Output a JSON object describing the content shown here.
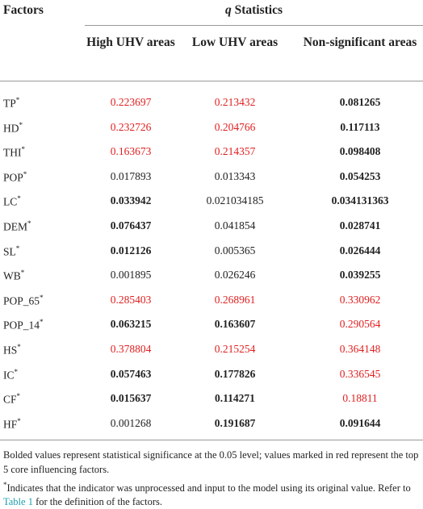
{
  "table": {
    "header": {
      "factors": "Factors",
      "group_italic": "q",
      "group_rest": " Statistics",
      "columns": [
        "High UHV areas",
        "Low UHV areas",
        "Non-significant areas"
      ]
    },
    "rows": [
      {
        "name": "TP",
        "note": "*",
        "cells": [
          {
            "text": "0.223697",
            "color": "#e02020",
            "bold": false
          },
          {
            "text": "0.213432",
            "color": "#e02020",
            "bold": false
          },
          {
            "text": "0.081265",
            "color": "#222222",
            "bold": true
          }
        ]
      },
      {
        "name": "HD",
        "note": "*",
        "cells": [
          {
            "text": "0.232726",
            "color": "#e02020",
            "bold": false
          },
          {
            "text": "0.204766",
            "color": "#e02020",
            "bold": false
          },
          {
            "text": "0.117113",
            "color": "#222222",
            "bold": true
          }
        ]
      },
      {
        "name": "THI",
        "note": "*",
        "cells": [
          {
            "text": "0.163673",
            "color": "#e02020",
            "bold": false
          },
          {
            "text": "0.214357",
            "color": "#e02020",
            "bold": false
          },
          {
            "text": "0.098408",
            "color": "#222222",
            "bold": true
          }
        ]
      },
      {
        "name": "POP",
        "note": "*",
        "cells": [
          {
            "text": "0.017893",
            "color": "#222222",
            "bold": false
          },
          {
            "text": "0.013343",
            "color": "#222222",
            "bold": false
          },
          {
            "text": "0.054253",
            "color": "#222222",
            "bold": true
          }
        ]
      },
      {
        "name": "LC",
        "note": "*",
        "cells": [
          {
            "text": "0.033942",
            "color": "#222222",
            "bold": true
          },
          {
            "text": "0.021034185",
            "color": "#222222",
            "bold": false
          },
          {
            "text": "0.034131363",
            "color": "#222222",
            "bold": true
          }
        ]
      },
      {
        "name": "DEM",
        "note": "*",
        "cells": [
          {
            "text": "0.076437",
            "color": "#222222",
            "bold": true
          },
          {
            "text": "0.041854",
            "color": "#222222",
            "bold": false
          },
          {
            "text": "0.028741",
            "color": "#222222",
            "bold": true
          }
        ]
      },
      {
        "name": "SL",
        "note": "*",
        "cells": [
          {
            "text": "0.012126",
            "color": "#222222",
            "bold": true
          },
          {
            "text": "0.005365",
            "color": "#222222",
            "bold": false
          },
          {
            "text": "0.026444",
            "color": "#222222",
            "bold": true
          }
        ]
      },
      {
        "name": "WB",
        "note": "*",
        "cells": [
          {
            "text": "0.001895",
            "color": "#222222",
            "bold": false
          },
          {
            "text": "0.026246",
            "color": "#222222",
            "bold": false
          },
          {
            "text": "0.039255",
            "color": "#222222",
            "bold": true
          }
        ]
      },
      {
        "name": "POP_65",
        "note": "*",
        "cells": [
          {
            "text": "0.285403",
            "color": "#e02020",
            "bold": false
          },
          {
            "text": "0.268961",
            "color": "#e02020",
            "bold": false
          },
          {
            "text": "0.330962",
            "color": "#e02020",
            "bold": false
          }
        ]
      },
      {
        "name": "POP_14",
        "note": "*",
        "cells": [
          {
            "text": "0.063215",
            "color": "#222222",
            "bold": true
          },
          {
            "text": "0.163607",
            "color": "#222222",
            "bold": true
          },
          {
            "text": "0.290564",
            "color": "#e02020",
            "bold": false
          }
        ]
      },
      {
        "name": "HS",
        "note": "*",
        "cells": [
          {
            "text": "0.378804",
            "color": "#e02020",
            "bold": false
          },
          {
            "text": "0.215254",
            "color": "#e02020",
            "bold": false
          },
          {
            "text": "0.364148",
            "color": "#e02020",
            "bold": false
          }
        ]
      },
      {
        "name": "IC",
        "note": "*",
        "cells": [
          {
            "text": "0.057463",
            "color": "#222222",
            "bold": true
          },
          {
            "text": "0.177826",
            "color": "#222222",
            "bold": true
          },
          {
            "text": "0.336545",
            "color": "#e02020",
            "bold": false
          }
        ]
      },
      {
        "name": "CF",
        "note": "*",
        "cells": [
          {
            "text": "0.015637",
            "color": "#222222",
            "bold": true
          },
          {
            "text": "0.114271",
            "color": "#222222",
            "bold": true
          },
          {
            "text": "0.18811",
            "color": "#e02020",
            "bold": false
          }
        ]
      },
      {
        "name": "HF",
        "note": "*",
        "cells": [
          {
            "text": "0.001268",
            "color": "#222222",
            "bold": false
          },
          {
            "text": "0.191687",
            "color": "#222222",
            "bold": true
          },
          {
            "text": "0.091644",
            "color": "#222222",
            "bold": true
          }
        ]
      }
    ]
  },
  "footnotes": {
    "first": "Bolded values represent statistical significance at the 0.05 level; values marked in red represent the top 5 core influencing factors.",
    "second_note": "*",
    "second_text": "Indicates that the indicator was unprocessed and input to the model using its original value. Refer to ",
    "second_link": "Table 1",
    "second_end": " for the definition of the factors."
  }
}
